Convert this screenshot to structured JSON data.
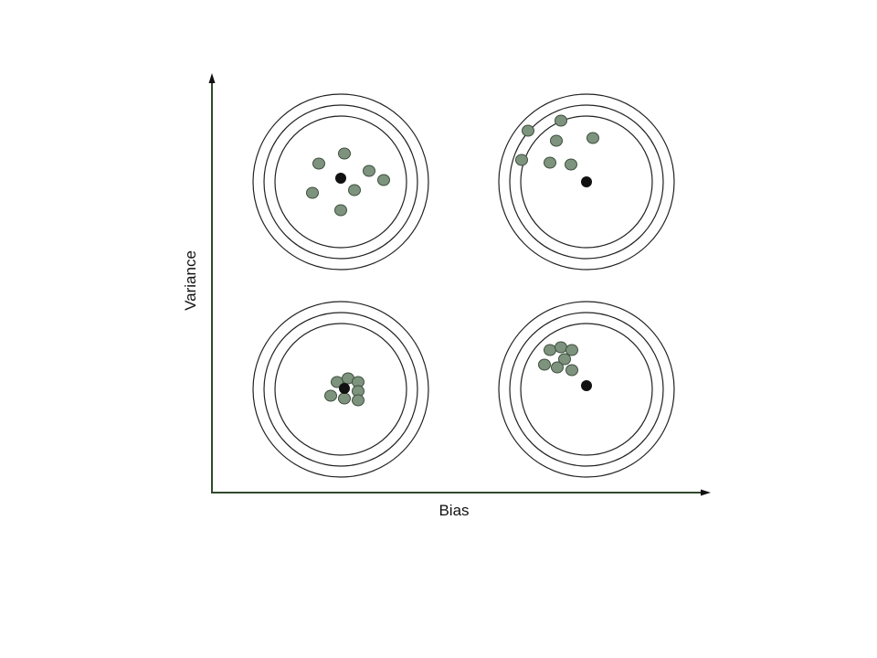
{
  "axes": {
    "x_label": "Bias",
    "y_label": "Variance",
    "axis_color": "#2f4a2c"
  },
  "colors": {
    "ring": "#222222",
    "shot_fill": "#7d937d",
    "shot_stroke": "#3e4e3e",
    "center": "#111111"
  },
  "targets": [
    {
      "id": "low-bias-high-variance",
      "bias": "low",
      "variance": "high",
      "quadrant": "top-left"
    },
    {
      "id": "high-bias-high-variance",
      "bias": "high",
      "variance": "high",
      "quadrant": "top-right"
    },
    {
      "id": "low-bias-low-variance",
      "bias": "low",
      "variance": "low",
      "quadrant": "bottom-left"
    },
    {
      "id": "high-bias-low-variance",
      "bias": "high",
      "variance": "low",
      "quadrant": "bottom-right"
    }
  ]
}
